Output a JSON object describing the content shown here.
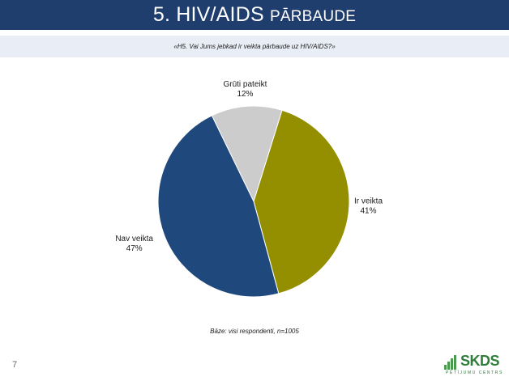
{
  "header": {
    "title_main": "5. HIV/AIDS",
    "title_small": "PĀRBAUDE",
    "question": "«H5. Vai Jums jebkad ir veikta pārbaude uz HIV/AIDS?»"
  },
  "chart_data": {
    "type": "pie",
    "slices": [
      {
        "name": "Grūti pateikt",
        "value": 12,
        "value_label": "12%",
        "color": "#cccccc"
      },
      {
        "name": "Ir veikta",
        "value": 41,
        "value_label": "41%",
        "color": "#948f00"
      },
      {
        "name": "Nav veikta",
        "value": 47,
        "value_label": "47%",
        "color": "#1f497d"
      }
    ]
  },
  "footer": {
    "base_note": "Bāze: visi respondenti, n=1005",
    "page_number": "7",
    "logo_text": "SKDS",
    "logo_subtitle": "PĒTĪJUMU CENTRS"
  }
}
